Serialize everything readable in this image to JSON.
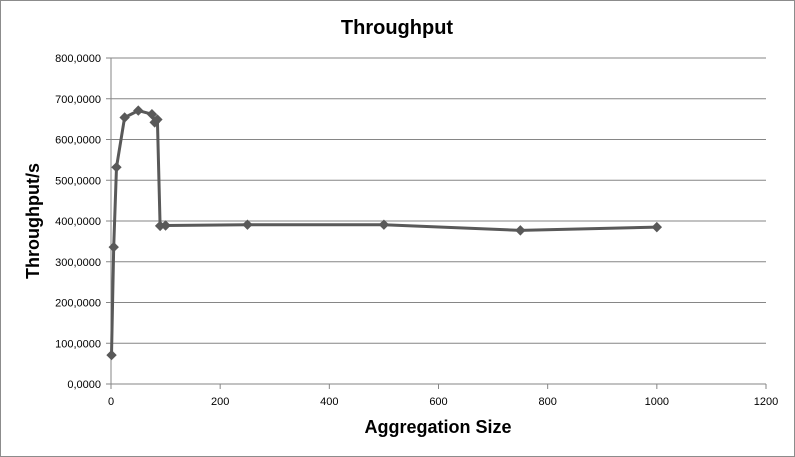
{
  "chart_data": {
    "type": "scatter",
    "title": "Throughput",
    "xlabel": "Aggregation Size",
    "ylabel": "Throughput/s",
    "xlim": [
      0,
      1200
    ],
    "ylim": [
      0,
      800000
    ],
    "x_ticks": [
      0,
      200,
      400,
      600,
      800,
      1000,
      1200
    ],
    "x_tick_labels": [
      "0",
      "200",
      "400",
      "600",
      "800",
      "1000",
      "1200"
    ],
    "y_ticks": [
      0,
      100000,
      200000,
      300000,
      400000,
      500000,
      600000,
      700000,
      800000
    ],
    "y_tick_labels": [
      "0,0000",
      "100,0000",
      "200,0000",
      "300,0000",
      "400,0000",
      "500,0000",
      "600,0000",
      "700,0000",
      "800,0000"
    ],
    "grid": "horizontal",
    "legend": "none",
    "series": [
      {
        "name": "Throughput",
        "color": "#595959",
        "marker": "diamond",
        "x": [
          1,
          5,
          10,
          25,
          50,
          75,
          80,
          85,
          90,
          100,
          250,
          500,
          750,
          1000
        ],
        "y": [
          71000,
          336000,
          532000,
          654000,
          671000,
          662000,
          642000,
          649000,
          388000,
          389000,
          391000,
          391000,
          377000,
          385000
        ]
      }
    ]
  }
}
